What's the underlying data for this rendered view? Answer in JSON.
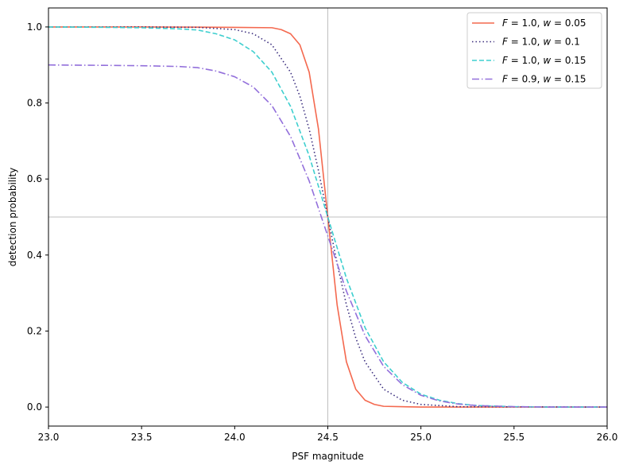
{
  "chart_data": {
    "type": "line",
    "xlabel": "PSF magnitude",
    "ylabel": "detection probability",
    "xlim": [
      23.0,
      26.0
    ],
    "ylim": [
      -0.05,
      1.05
    ],
    "xticks": [
      23.0,
      23.5,
      24.0,
      24.5,
      25.0,
      25.5,
      26.0
    ],
    "xtick_labels": [
      "23.0",
      "23.5",
      "24.0",
      "24.5",
      "25.0",
      "25.5",
      "26.0"
    ],
    "yticks": [
      0.0,
      0.2,
      0.4,
      0.6,
      0.8,
      1.0
    ],
    "ytick_labels": [
      "0.0",
      "0.2",
      "0.4",
      "0.6",
      "0.8",
      "1.0"
    ],
    "reference_lines": {
      "vertical_x": 24.5,
      "horizontal_y": 0.5,
      "color": "#bfbfbf"
    },
    "grid": false,
    "legend_position": "top-right",
    "series": [
      {
        "name": "F = 1.0, w = 0.05",
        "legend_parts": [
          "F",
          " =  1.0, ",
          "w",
          " = 0.05"
        ],
        "color": "#f4694f",
        "dash": "solid",
        "x": [
          23.0,
          23.5,
          24.0,
          24.2,
          24.25,
          24.3,
          24.35,
          24.4,
          24.45,
          24.5,
          24.55,
          24.6,
          24.65,
          24.7,
          24.75,
          24.8,
          25.0,
          26.0
        ],
        "y": [
          1.0,
          1.0,
          0.999,
          0.998,
          0.993,
          0.982,
          0.953,
          0.881,
          0.731,
          0.5,
          0.269,
          0.119,
          0.047,
          0.018,
          0.007,
          0.002,
          0.0,
          0.0
        ]
      },
      {
        "name": "F = 1.0, w = 0.1",
        "legend_parts": [
          "F",
          " =  1.0, ",
          "w",
          " = 0.1"
        ],
        "color": "#3b2e7e",
        "dash": "dotted",
        "x": [
          23.0,
          23.5,
          23.8,
          24.0,
          24.1,
          24.2,
          24.3,
          24.35,
          24.4,
          24.45,
          24.5,
          24.55,
          24.6,
          24.65,
          24.7,
          24.8,
          24.9,
          25.0,
          25.2,
          26.0
        ],
        "y": [
          1.0,
          1.0,
          0.999,
          0.993,
          0.982,
          0.953,
          0.881,
          0.818,
          0.731,
          0.622,
          0.5,
          0.378,
          0.269,
          0.182,
          0.119,
          0.047,
          0.018,
          0.007,
          0.001,
          0.0
        ]
      },
      {
        "name": "F = 1.0, w = 0.15",
        "legend_parts": [
          "F",
          " =  1.0, ",
          "w",
          " = 0.15"
        ],
        "color": "#3ecfcf",
        "dash": "dashed",
        "x": [
          23.0,
          23.3,
          23.5,
          23.7,
          23.8,
          23.9,
          24.0,
          24.1,
          24.2,
          24.3,
          24.4,
          24.5,
          24.6,
          24.7,
          24.8,
          24.9,
          25.0,
          25.1,
          25.2,
          25.3,
          25.5,
          25.7,
          26.0
        ],
        "y": [
          1.0,
          0.999,
          0.998,
          0.995,
          0.992,
          0.982,
          0.966,
          0.935,
          0.881,
          0.791,
          0.661,
          0.5,
          0.339,
          0.209,
          0.119,
          0.065,
          0.034,
          0.018,
          0.009,
          0.004,
          0.001,
          0.0,
          0.0
        ]
      },
      {
        "name": "F = 0.9, w = 0.15",
        "legend_parts": [
          "F",
          " =  0.9, ",
          "w",
          " = 0.15"
        ],
        "color": "#9370db",
        "dash": "dashdot",
        "x": [
          23.0,
          23.3,
          23.5,
          23.7,
          23.8,
          23.9,
          24.0,
          24.1,
          24.2,
          24.3,
          24.4,
          24.5,
          24.6,
          24.7,
          24.8,
          24.9,
          25.0,
          25.1,
          25.2,
          25.3,
          25.5,
          25.7,
          26.0
        ],
        "y": [
          0.9,
          0.899,
          0.898,
          0.896,
          0.893,
          0.884,
          0.869,
          0.842,
          0.793,
          0.712,
          0.595,
          0.45,
          0.305,
          0.188,
          0.107,
          0.059,
          0.031,
          0.016,
          0.008,
          0.004,
          0.001,
          0.0,
          0.0
        ]
      }
    ]
  }
}
